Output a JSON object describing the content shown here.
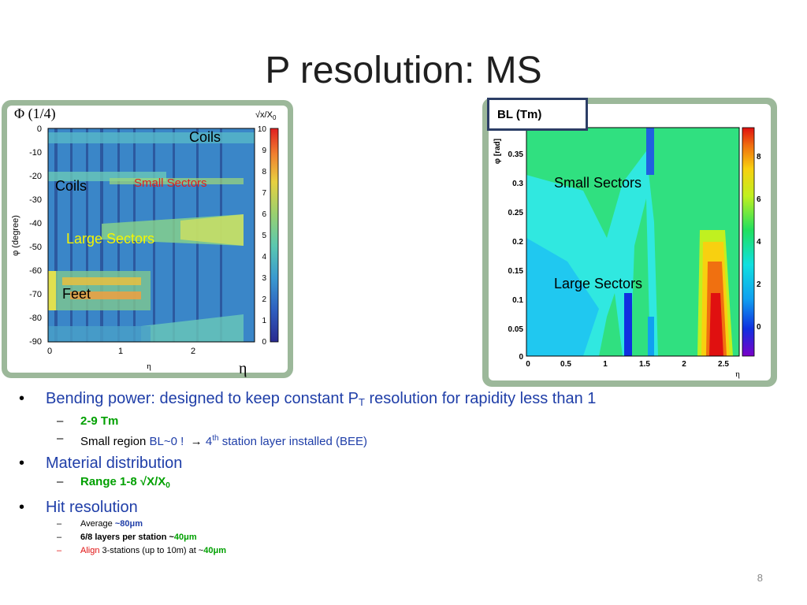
{
  "title": "P resolution: MS",
  "left_figure": {
    "corner_label": "Φ (1/4)",
    "colorbar_title": "√x/X",
    "colorbar_title_sub": "0",
    "ylabel": "φ (degree)",
    "xlabel": "η",
    "xlabel_outside": "η",
    "y_ticks": [
      "0",
      "-10",
      "-20",
      "-30",
      "-40",
      "-50",
      "-60",
      "-70",
      "-80",
      "-90"
    ],
    "x_ticks": [
      "0",
      "1",
      "2"
    ],
    "colorbar_ticks": [
      "10",
      "9",
      "8",
      "7",
      "6",
      "5",
      "4",
      "3",
      "2",
      "1",
      "0"
    ],
    "labels": {
      "coils_top": "Coils",
      "coils_left": "Coils",
      "small_sectors": "Small Sectors",
      "large_sectors": "Large Sectors",
      "feet": "Feet"
    },
    "colors": {
      "small_sectors": "#e02020",
      "large_sectors": "#f5f500"
    }
  },
  "right_figure": {
    "box_label": "BL (Tm)",
    "ylabel": "φ [rad]",
    "xlabel": "η",
    "y_ticks": [
      "0.35",
      "0.3",
      "0.25",
      "0.2",
      "0.15",
      "0.1",
      "0.05",
      "0"
    ],
    "x_ticks": [
      "0",
      "0.5",
      "1",
      "1.5",
      "2",
      "2.5"
    ],
    "colorbar_ticks": [
      "8",
      "6",
      "4",
      "2",
      "0"
    ],
    "labels": {
      "small_sectors": "Small Sectors",
      "large_sectors": "Large Sectors"
    }
  },
  "bullets": {
    "b1": {
      "text": "Bending power: designed to keep constant P",
      "sub": "T",
      "text2": " resolution  for rapidity less than 1"
    },
    "b1_1": "2-9 Tm",
    "b1_2": {
      "a": "Small region ",
      "b": "BL~0 !",
      "c": "4",
      "c_sup": "th",
      "d": " station layer installed (BEE)"
    },
    "b2": "Material distribution",
    "b2_1": {
      "a": "Range 1-8  √X/X",
      "sub": "0"
    },
    "b3": "Hit resolution",
    "b3_1": {
      "a": "Average ",
      "b": "~80μm"
    },
    "b3_2": {
      "a": "6/8 layers per station ~",
      "b": "40μm"
    },
    "b3_3": {
      "a": "Align",
      "b": " 3-stations (up to 10m) at ~",
      "c": "40μm"
    }
  },
  "page_number": "8"
}
